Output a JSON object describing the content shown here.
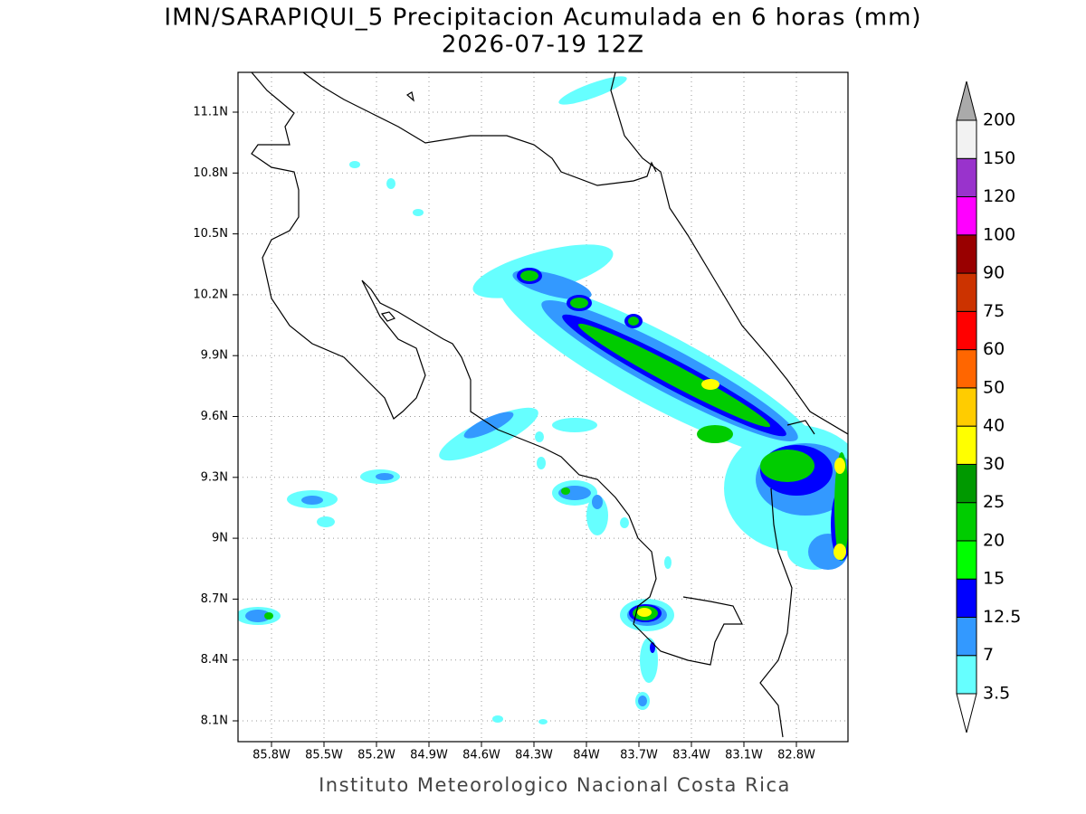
{
  "header": {
    "title": "IMN/SARAPIQUI_5 Precipitacion Acumulada en 6 horas (mm)",
    "subtitle": "2026-07-19 12Z"
  },
  "map": {
    "lon_labels": [
      "85.8W",
      "85.5W",
      "85.2W",
      "84.9W",
      "84.6W",
      "84.3W",
      "84W",
      "83.7W",
      "83.4W",
      "83.1W",
      "82.8W"
    ],
    "lat_labels": [
      "11.1N",
      "10.8N",
      "10.5N",
      "10.2N",
      "9.9N",
      "9.6N",
      "9.3N",
      "9N",
      "8.7N",
      "8.4N",
      "8.1N"
    ]
  },
  "colorbar": {
    "levels": [
      3.5,
      7,
      12.5,
      15,
      20,
      25,
      30,
      40,
      50,
      60,
      75,
      90,
      100,
      120,
      150,
      200
    ],
    "colors": [
      "#66ffff",
      "#3399ff",
      "#0000ff",
      "#00ff00",
      "#00cc00",
      "#009900",
      "#ffff00",
      "#ffcc00",
      "#ff6600",
      "#ff0000",
      "#cc3300",
      "#990000",
      "#ff00ff",
      "#9933cc",
      "#f2f2f2",
      "#aaaaaa"
    ]
  },
  "footer": {
    "text": "Instituto Meteorologico Nacional Costa Rica"
  }
}
